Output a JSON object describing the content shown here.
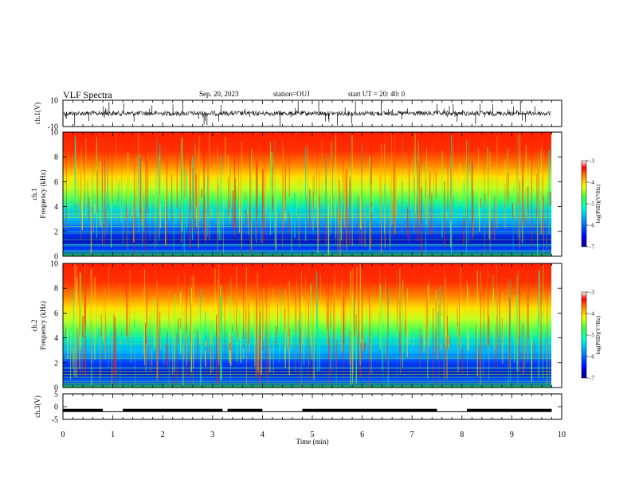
{
  "header": {
    "title": "VLF Spectra",
    "date": "Sep. 20, 2023",
    "station": "station=OUJ",
    "start": "start  UT =   20: 40: 0"
  },
  "chart_data": [
    {
      "type": "line",
      "panel": "ch1-waveform",
      "ylabel": "ch.1(V)",
      "ylim": [
        -10,
        10
      ],
      "yticks": [
        "10",
        "-10"
      ],
      "xlim": [
        0,
        10
      ],
      "color": "#000000"
    },
    {
      "type": "heatmap",
      "panel": "ch1-spectrogram",
      "ylabel_lines": [
        "ch.1",
        "Frequency (kHz)"
      ],
      "ylim": [
        0,
        10
      ],
      "yticks": [
        "0",
        "2",
        "4",
        "6",
        "8",
        "10"
      ],
      "xlim": [
        0,
        10
      ],
      "colorbar": {
        "label": "log(PSD)(V²/Hz)",
        "range": [
          -7,
          -3
        ],
        "ticks": [
          "-3",
          "-4",
          "-5",
          "-6",
          "-7"
        ]
      }
    },
    {
      "type": "heatmap",
      "panel": "ch2-spectrogram",
      "ylabel_lines": [
        "ch.2",
        "Frequency (kHz)"
      ],
      "ylim": [
        0,
        10
      ],
      "yticks": [
        "0",
        "2",
        "4",
        "6",
        "8",
        "10"
      ],
      "xlim": [
        0,
        10
      ],
      "colorbar": {
        "label": "log(PSD)(V²/Hz)",
        "range": [
          -7,
          -3
        ],
        "ticks": [
          "-3",
          "-4",
          "-5",
          "-6",
          "-7"
        ]
      }
    },
    {
      "type": "line",
      "panel": "ch3-signal",
      "ylabel": "ch.3(V)",
      "ylim": [
        -5,
        5
      ],
      "yticks": [
        "5",
        "0",
        "-5"
      ],
      "xlim": [
        0,
        10
      ],
      "xlabel": "Time (min)",
      "xticks": [
        "0",
        "1",
        "2",
        "3",
        "4",
        "5",
        "6",
        "7",
        "8",
        "9",
        "10"
      ],
      "level_segments": [
        {
          "x0": 0.0,
          "x1": 0.8,
          "y": -1.5
        },
        {
          "x0": 0.8,
          "x1": 1.2,
          "y": -2.0
        },
        {
          "x0": 1.2,
          "x1": 3.2,
          "y": -1.5
        },
        {
          "x0": 3.2,
          "x1": 3.3,
          "y": -2.0
        },
        {
          "x0": 3.3,
          "x1": 4.0,
          "y": -1.5
        },
        {
          "x0": 4.0,
          "x1": 4.8,
          "y": -2.0
        },
        {
          "x0": 4.8,
          "x1": 7.5,
          "y": -1.5
        },
        {
          "x0": 7.5,
          "x1": 8.1,
          "y": -2.0
        },
        {
          "x0": 8.1,
          "x1": 9.8,
          "y": -1.5
        }
      ]
    }
  ]
}
